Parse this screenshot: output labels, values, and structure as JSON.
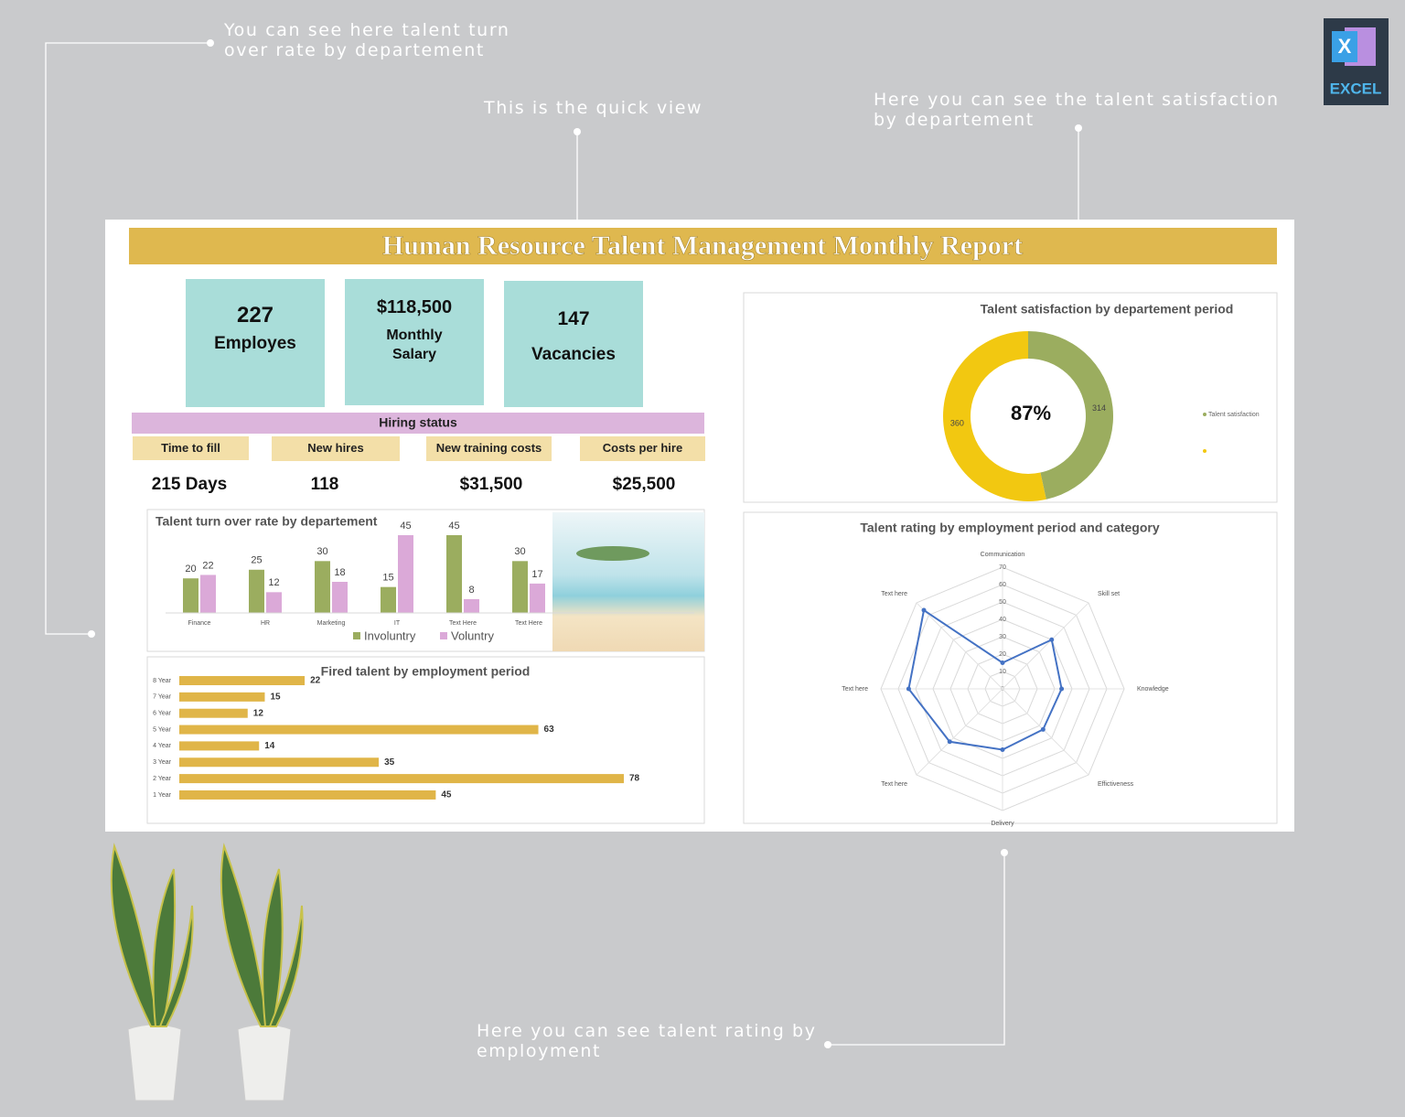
{
  "annotations": [
    "You can see here talent turn over rate by departement",
    "This is the quick view",
    "Here you can see the talent satisfaction by departement",
    "Here you can see talent rating by employment"
  ],
  "logo": {
    "letter": "X",
    "label": "EXCEL"
  },
  "header": {
    "title": "Human Resource Talent Management Monthly Report"
  },
  "kpis": [
    {
      "value": "227",
      "label": "Employes"
    },
    {
      "value": "$118,500",
      "label": "Monthly Salary"
    },
    {
      "value": "147",
      "label": "Vacancies"
    }
  ],
  "hiring": {
    "title": "Hiring status",
    "items": [
      {
        "label": "Time to fill",
        "value": "215 Days"
      },
      {
        "label": "New hires",
        "value": "118"
      },
      {
        "label": "New training costs",
        "value": "$31,500"
      },
      {
        "label": "Costs per hire",
        "value": "$25,500"
      }
    ]
  },
  "chart_data": [
    {
      "type": "bar",
      "title": "Talent turn over rate by departement",
      "categories": [
        "Finance",
        "HR",
        "Marketing",
        "IT",
        "Text Here",
        "Text Here"
      ],
      "series": [
        {
          "name": "Involuntry",
          "color": "#9bad5f",
          "values": [
            20,
            25,
            30,
            15,
            45,
            30
          ]
        },
        {
          "name": "Voluntry",
          "color": "#dba9d8",
          "values": [
            22,
            12,
            18,
            45,
            8,
            17
          ]
        }
      ]
    },
    {
      "type": "pie",
      "title": "Talent satisfaction by departement period",
      "categories": [
        "Talent satisfaction",
        null
      ],
      "values": [
        314,
        360
      ],
      "colors": [
        "#9bad5f",
        "#f2c811"
      ],
      "center_label": "87%"
    },
    {
      "type": "hbar",
      "title": "Fired talent by employment period",
      "categories": [
        "8 Year",
        "7 Year",
        "6 Year",
        "5 Year",
        "4 Year",
        "3 Year",
        "2 Year",
        "1 Year"
      ],
      "values": [
        22,
        15,
        12,
        63,
        14,
        35,
        78,
        45
      ],
      "color": "#e0b548"
    },
    {
      "type": "radar",
      "title": "Talent rating by employment period and category",
      "categories": [
        "Communication",
        "Skill set",
        "Knowledge",
        "Effictiveness",
        "Delivery",
        "Text here",
        "Text here",
        "Text here"
      ],
      "values": [
        15,
        40,
        34,
        33,
        35,
        43,
        54,
        64
      ],
      "color": "#4472c4",
      "rlim": [
        0,
        70
      ],
      "rticks": [
        0,
        10,
        20,
        30,
        40,
        50,
        60,
        70
      ]
    }
  ]
}
